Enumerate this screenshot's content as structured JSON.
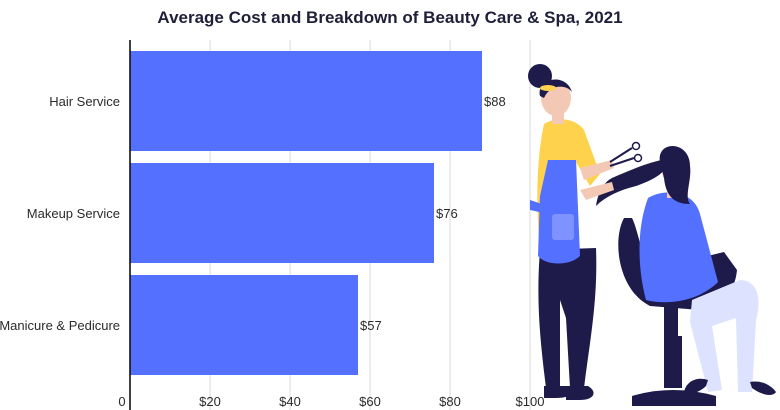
{
  "chart_data": {
    "type": "bar",
    "orientation": "horizontal",
    "title": "Average Cost and Breakdown of Beauty Care & Spa, 2021",
    "categories": [
      "Hair Service",
      "Makeup Service",
      "Manicure & Pedicure"
    ],
    "values": [
      88,
      76,
      57
    ],
    "value_labels": [
      "$88",
      "$76",
      "$57"
    ],
    "xlim": [
      0,
      100
    ],
    "x_ticks": [
      0,
      20,
      40,
      60,
      80,
      100
    ],
    "x_tick_labels": [
      "0",
      "$20",
      "$40",
      "$60",
      "$80",
      "$100"
    ],
    "xlabel": "",
    "ylabel": "",
    "grid": true,
    "bar_color": "#5470FF"
  },
  "illustration": {
    "icon": "hair-salon-illustration",
    "colors": {
      "navy": "#1E1B4B",
      "blue": "#5470FF",
      "yellow": "#FFD24D",
      "skin": "#F3C9B5",
      "pale": "#DDE3FF"
    }
  }
}
